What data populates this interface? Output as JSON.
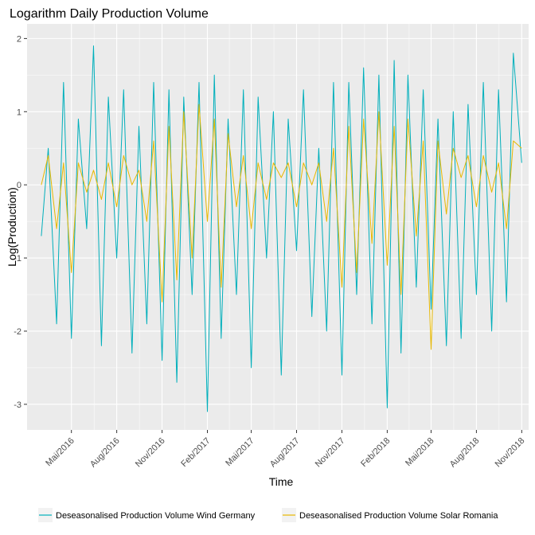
{
  "chart_data": {
    "type": "line",
    "title": "Logarithm Daily Production Volume",
    "xlabel": "Time",
    "ylabel": "Log(Production)",
    "x_range": [
      "2016-02-01",
      "2018-11-15"
    ],
    "ylim": [
      -3.35,
      2.2
    ],
    "y_ticks": [
      2,
      1,
      0,
      -1,
      -2,
      -3
    ],
    "y_tick_labels": [
      "2",
      "1",
      "0",
      "-1",
      "-2",
      "-3"
    ],
    "x_ticks": [
      "2016-05-01",
      "2016-08-01",
      "2016-11-01",
      "2017-02-01",
      "2017-05-01",
      "2017-08-01",
      "2017-11-01",
      "2018-02-01",
      "2018-05-01",
      "2018-08-01",
      "2018-11-01"
    ],
    "x_tick_labels": [
      "Mai/2016",
      "Aug/2016",
      "Nov/2016",
      "Feb/2017",
      "Mai/2017",
      "Aug/2017",
      "Nov/2017",
      "Feb/2018",
      "Mai/2018",
      "Aug/2018",
      "Nov/2018"
    ],
    "grid": true,
    "legend_position": "bottom",
    "colors": {
      "panel": "#ebebeb",
      "grid": "#ffffff",
      "wind": "#00AFBB",
      "solar": "#E7B800"
    },
    "series": [
      {
        "name": "Deseasonalised Production Volume Wind Germany",
        "color": "#00AFBB",
        "x": [
          "2016-03-01",
          "2016-03-15",
          "2016-04-01",
          "2016-04-15",
          "2016-05-01",
          "2016-05-15",
          "2016-06-01",
          "2016-06-15",
          "2016-07-01",
          "2016-07-15",
          "2016-08-01",
          "2016-08-15",
          "2016-09-01",
          "2016-09-15",
          "2016-10-01",
          "2016-10-15",
          "2016-11-01",
          "2016-11-15",
          "2016-12-01",
          "2016-12-15",
          "2017-01-01",
          "2017-01-15",
          "2017-02-01",
          "2017-02-15",
          "2017-03-01",
          "2017-03-15",
          "2017-04-01",
          "2017-04-15",
          "2017-05-01",
          "2017-05-15",
          "2017-06-01",
          "2017-06-15",
          "2017-07-01",
          "2017-07-15",
          "2017-08-01",
          "2017-08-15",
          "2017-09-01",
          "2017-09-15",
          "2017-10-01",
          "2017-10-15",
          "2017-11-01",
          "2017-11-15",
          "2017-12-01",
          "2017-12-15",
          "2018-01-01",
          "2018-01-15",
          "2018-02-01",
          "2018-02-15",
          "2018-03-01",
          "2018-03-15",
          "2018-04-01",
          "2018-04-15",
          "2018-05-01",
          "2018-05-15",
          "2018-06-01",
          "2018-06-15",
          "2018-07-01",
          "2018-07-15",
          "2018-08-01",
          "2018-08-15",
          "2018-09-01",
          "2018-09-15",
          "2018-10-01",
          "2018-10-15",
          "2018-11-01"
        ],
        "values": [
          -0.7,
          0.5,
          -1.9,
          1.4,
          -2.1,
          0.9,
          -0.6,
          1.9,
          -2.2,
          1.2,
          -1.0,
          1.3,
          -2.3,
          0.8,
          -1.9,
          1.4,
          -2.4,
          1.3,
          -2.7,
          1.2,
          -1.5,
          1.4,
          -3.1,
          1.5,
          -2.1,
          0.9,
          -1.5,
          1.3,
          -2.5,
          1.2,
          -1.0,
          1.0,
          -2.6,
          0.9,
          -0.9,
          1.3,
          -1.8,
          0.5,
          -2.0,
          1.4,
          -2.6,
          1.4,
          -1.5,
          1.6,
          -1.9,
          1.5,
          -3.05,
          1.7,
          -2.3,
          1.5,
          -1.4,
          1.3,
          -1.7,
          0.9,
          -2.2,
          1.0,
          -2.1,
          1.1,
          -1.5,
          1.4,
          -2.0,
          1.3,
          -1.6,
          1.8,
          0.3
        ]
      },
      {
        "name": "Deseasonalised Production Volume Solar Romania",
        "color": "#E7B800",
        "x": [
          "2016-03-01",
          "2016-03-15",
          "2016-04-01",
          "2016-04-15",
          "2016-05-01",
          "2016-05-15",
          "2016-06-01",
          "2016-06-15",
          "2016-07-01",
          "2016-07-15",
          "2016-08-01",
          "2016-08-15",
          "2016-09-01",
          "2016-09-15",
          "2016-10-01",
          "2016-10-15",
          "2016-11-01",
          "2016-11-15",
          "2016-12-01",
          "2016-12-15",
          "2017-01-01",
          "2017-01-15",
          "2017-02-01",
          "2017-02-15",
          "2017-03-01",
          "2017-03-15",
          "2017-04-01",
          "2017-04-15",
          "2017-05-01",
          "2017-05-15",
          "2017-06-01",
          "2017-06-15",
          "2017-07-01",
          "2017-07-15",
          "2017-08-01",
          "2017-08-15",
          "2017-09-01",
          "2017-09-15",
          "2017-10-01",
          "2017-10-15",
          "2017-11-01",
          "2017-11-15",
          "2017-12-01",
          "2017-12-15",
          "2018-01-01",
          "2018-01-15",
          "2018-02-01",
          "2018-02-15",
          "2018-03-01",
          "2018-03-15",
          "2018-04-01",
          "2018-04-15",
          "2018-05-01",
          "2018-05-15",
          "2018-06-01",
          "2018-06-15",
          "2018-07-01",
          "2018-07-15",
          "2018-08-01",
          "2018-08-15",
          "2018-09-01",
          "2018-09-15",
          "2018-10-01",
          "2018-10-15",
          "2018-11-01"
        ],
        "values": [
          0.0,
          0.4,
          -0.6,
          0.3,
          -1.2,
          0.3,
          -0.1,
          0.2,
          -0.2,
          0.3,
          -0.3,
          0.4,
          0.0,
          0.2,
          -0.5,
          0.6,
          -1.6,
          0.8,
          -1.3,
          1.0,
          -1.0,
          1.1,
          -0.5,
          0.9,
          -1.4,
          0.7,
          -0.3,
          0.4,
          -0.6,
          0.3,
          -0.2,
          0.3,
          0.1,
          0.3,
          -0.3,
          0.3,
          0.0,
          0.3,
          -0.5,
          0.5,
          -1.4,
          0.8,
          -1.2,
          0.9,
          -0.8,
          1.0,
          -1.1,
          0.8,
          -1.5,
          0.9,
          -0.7,
          0.6,
          -2.25,
          0.6,
          -0.4,
          0.5,
          0.1,
          0.4,
          -0.3,
          0.4,
          -0.1,
          0.3,
          -0.6,
          0.6,
          0.5
        ]
      }
    ]
  }
}
